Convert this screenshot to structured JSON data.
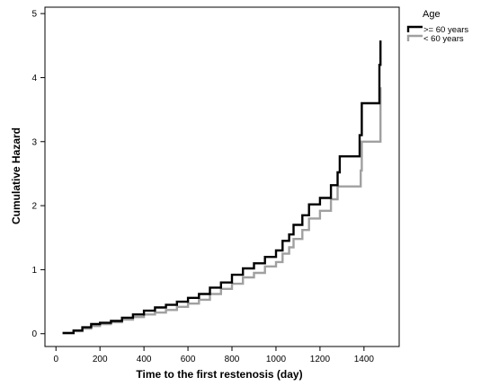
{
  "chart_data": {
    "type": "line",
    "step": true,
    "xlabel": "Time to the first restenosis (day)",
    "ylabel": "Cumulative Hazard",
    "xlim": [
      -50,
      1560
    ],
    "ylim": [
      -0.2,
      5.1
    ],
    "xticks": [
      0,
      200,
      400,
      600,
      800,
      1000,
      1200,
      1400
    ],
    "yticks": [
      0,
      1,
      2,
      3,
      4,
      5
    ],
    "grid": false,
    "legend": {
      "title": "Age",
      "placement": "top-right, outside plot"
    },
    "series": [
      {
        "name": ">= 60 years",
        "color": "#000000",
        "points": [
          [
            30,
            0.01
          ],
          [
            80,
            0.05
          ],
          [
            120,
            0.1
          ],
          [
            160,
            0.15
          ],
          [
            200,
            0.17
          ],
          [
            250,
            0.2
          ],
          [
            300,
            0.25
          ],
          [
            350,
            0.3
          ],
          [
            400,
            0.36
          ],
          [
            450,
            0.41
          ],
          [
            500,
            0.45
          ],
          [
            550,
            0.5
          ],
          [
            600,
            0.56
          ],
          [
            650,
            0.62
          ],
          [
            700,
            0.72
          ],
          [
            750,
            0.8
          ],
          [
            800,
            0.92
          ],
          [
            850,
            1.02
          ],
          [
            900,
            1.1
          ],
          [
            950,
            1.2
          ],
          [
            1000,
            1.3
          ],
          [
            1030,
            1.45
          ],
          [
            1060,
            1.55
          ],
          [
            1080,
            1.7
          ],
          [
            1120,
            1.85
          ],
          [
            1150,
            2.02
          ],
          [
            1200,
            2.12
          ],
          [
            1250,
            2.32
          ],
          [
            1280,
            2.52
          ],
          [
            1290,
            2.77
          ],
          [
            1380,
            3.1
          ],
          [
            1390,
            3.6
          ],
          [
            1470,
            4.2
          ],
          [
            1475,
            4.58
          ]
        ]
      },
      {
        "name": "<  60 years",
        "color": "#a0a0a0",
        "points": [
          [
            30,
            0.01
          ],
          [
            80,
            0.04
          ],
          [
            120,
            0.08
          ],
          [
            160,
            0.12
          ],
          [
            200,
            0.15
          ],
          [
            250,
            0.18
          ],
          [
            300,
            0.22
          ],
          [
            350,
            0.26
          ],
          [
            400,
            0.3
          ],
          [
            450,
            0.33
          ],
          [
            500,
            0.37
          ],
          [
            550,
            0.42
          ],
          [
            600,
            0.47
          ],
          [
            650,
            0.53
          ],
          [
            700,
            0.62
          ],
          [
            750,
            0.7
          ],
          [
            800,
            0.78
          ],
          [
            850,
            0.88
          ],
          [
            900,
            0.95
          ],
          [
            950,
            1.05
          ],
          [
            1000,
            1.12
          ],
          [
            1030,
            1.25
          ],
          [
            1060,
            1.35
          ],
          [
            1080,
            1.48
          ],
          [
            1120,
            1.62
          ],
          [
            1150,
            1.8
          ],
          [
            1200,
            1.92
          ],
          [
            1250,
            2.1
          ],
          [
            1280,
            2.3
          ],
          [
            1385,
            2.55
          ],
          [
            1390,
            3.0
          ],
          [
            1475,
            3.85
          ]
        ]
      }
    ]
  }
}
